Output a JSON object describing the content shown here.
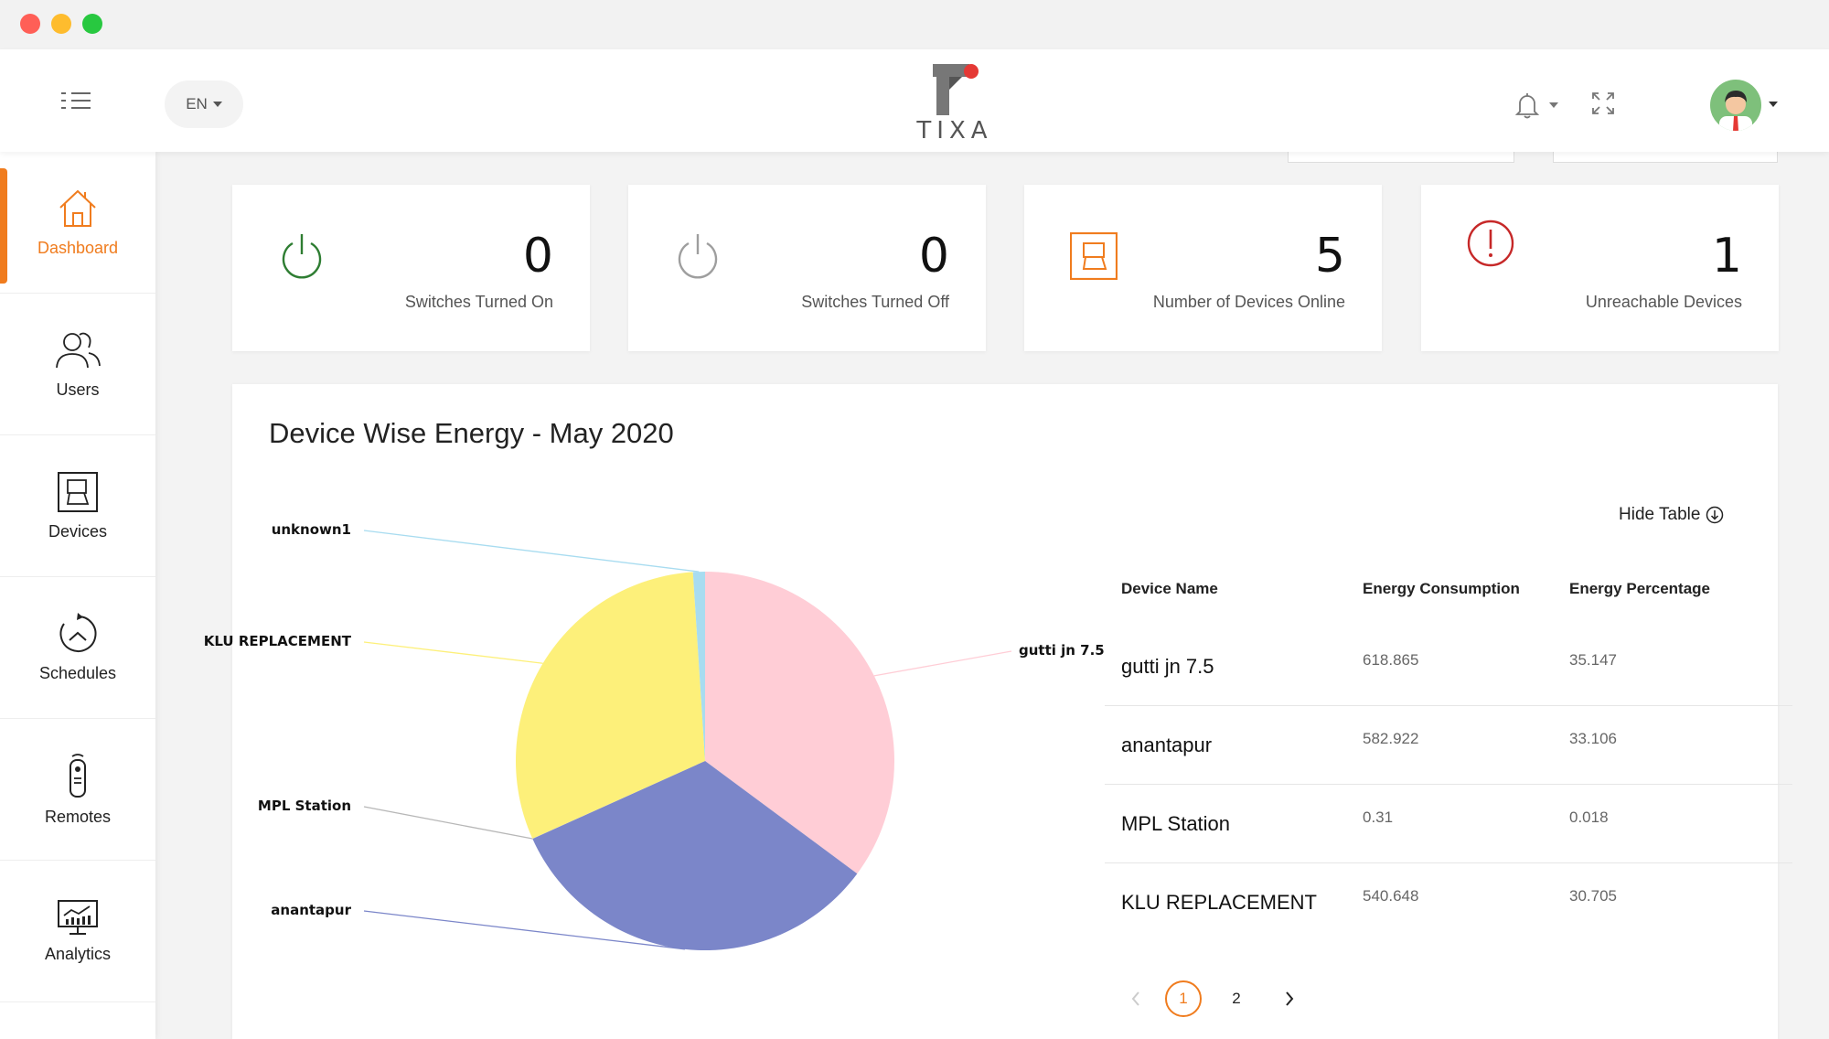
{
  "header": {
    "language": "EN",
    "logo_text": "TIXA"
  },
  "sidebar": {
    "items": [
      {
        "label": "Dashboard",
        "icon": "home-icon",
        "active": true
      },
      {
        "label": "Users",
        "icon": "users-icon",
        "active": false
      },
      {
        "label": "Devices",
        "icon": "device-icon",
        "active": false
      },
      {
        "label": "Schedules",
        "icon": "schedule-icon",
        "active": false
      },
      {
        "label": "Remotes",
        "icon": "remote-icon",
        "active": false
      },
      {
        "label": "Analytics",
        "icon": "analytics-icon",
        "active": false
      }
    ]
  },
  "stats": [
    {
      "value": "0",
      "caption": "Switches Turned On",
      "icon": "power-on-icon",
      "color": "#2e7d32"
    },
    {
      "value": "0",
      "caption": "Switches Turned Off",
      "icon": "power-off-icon",
      "color": "#9e9e9e"
    },
    {
      "value": "5",
      "caption": "Number of Devices Online",
      "icon": "device-online-icon",
      "color": "#f07c1e"
    },
    {
      "value": "1",
      "caption": "Unreachable Devices",
      "icon": "alert-icon",
      "color": "#c62828"
    }
  ],
  "energy": {
    "title": "Device Wise Energy - May 2020",
    "hide_table_label": "Hide Table",
    "columns": [
      "Device Name",
      "Energy Consumption",
      "Energy Percentage"
    ],
    "rows": [
      {
        "name": "gutti jn 7.5",
        "consumption": "618.865",
        "percentage": "35.147"
      },
      {
        "name": "anantapur",
        "consumption": "582.922",
        "percentage": "33.106"
      },
      {
        "name": "MPL Station",
        "consumption": "0.31",
        "percentage": "0.018"
      },
      {
        "name": "KLU REPLACEMENT",
        "consumption": "540.648",
        "percentage": "30.705"
      }
    ],
    "pagination": {
      "pages": [
        "1",
        "2"
      ],
      "current": "1"
    }
  },
  "chart_data": {
    "type": "pie",
    "title": "Device Wise Energy - May 2020",
    "slices": [
      {
        "label": "gutti jn 7.5",
        "value": 35.147,
        "color": "#ffcdd6"
      },
      {
        "label": "anantapur",
        "value": 33.106,
        "color": "#7b86c9"
      },
      {
        "label": "MPL Station",
        "value": 0.018,
        "color": "#b7b7b7"
      },
      {
        "label": "KLU REPLACEMENT",
        "value": 30.705,
        "color": "#fdf07a"
      },
      {
        "label": "unknown1",
        "value": 1.024,
        "color": "#a8dcf0"
      }
    ]
  }
}
